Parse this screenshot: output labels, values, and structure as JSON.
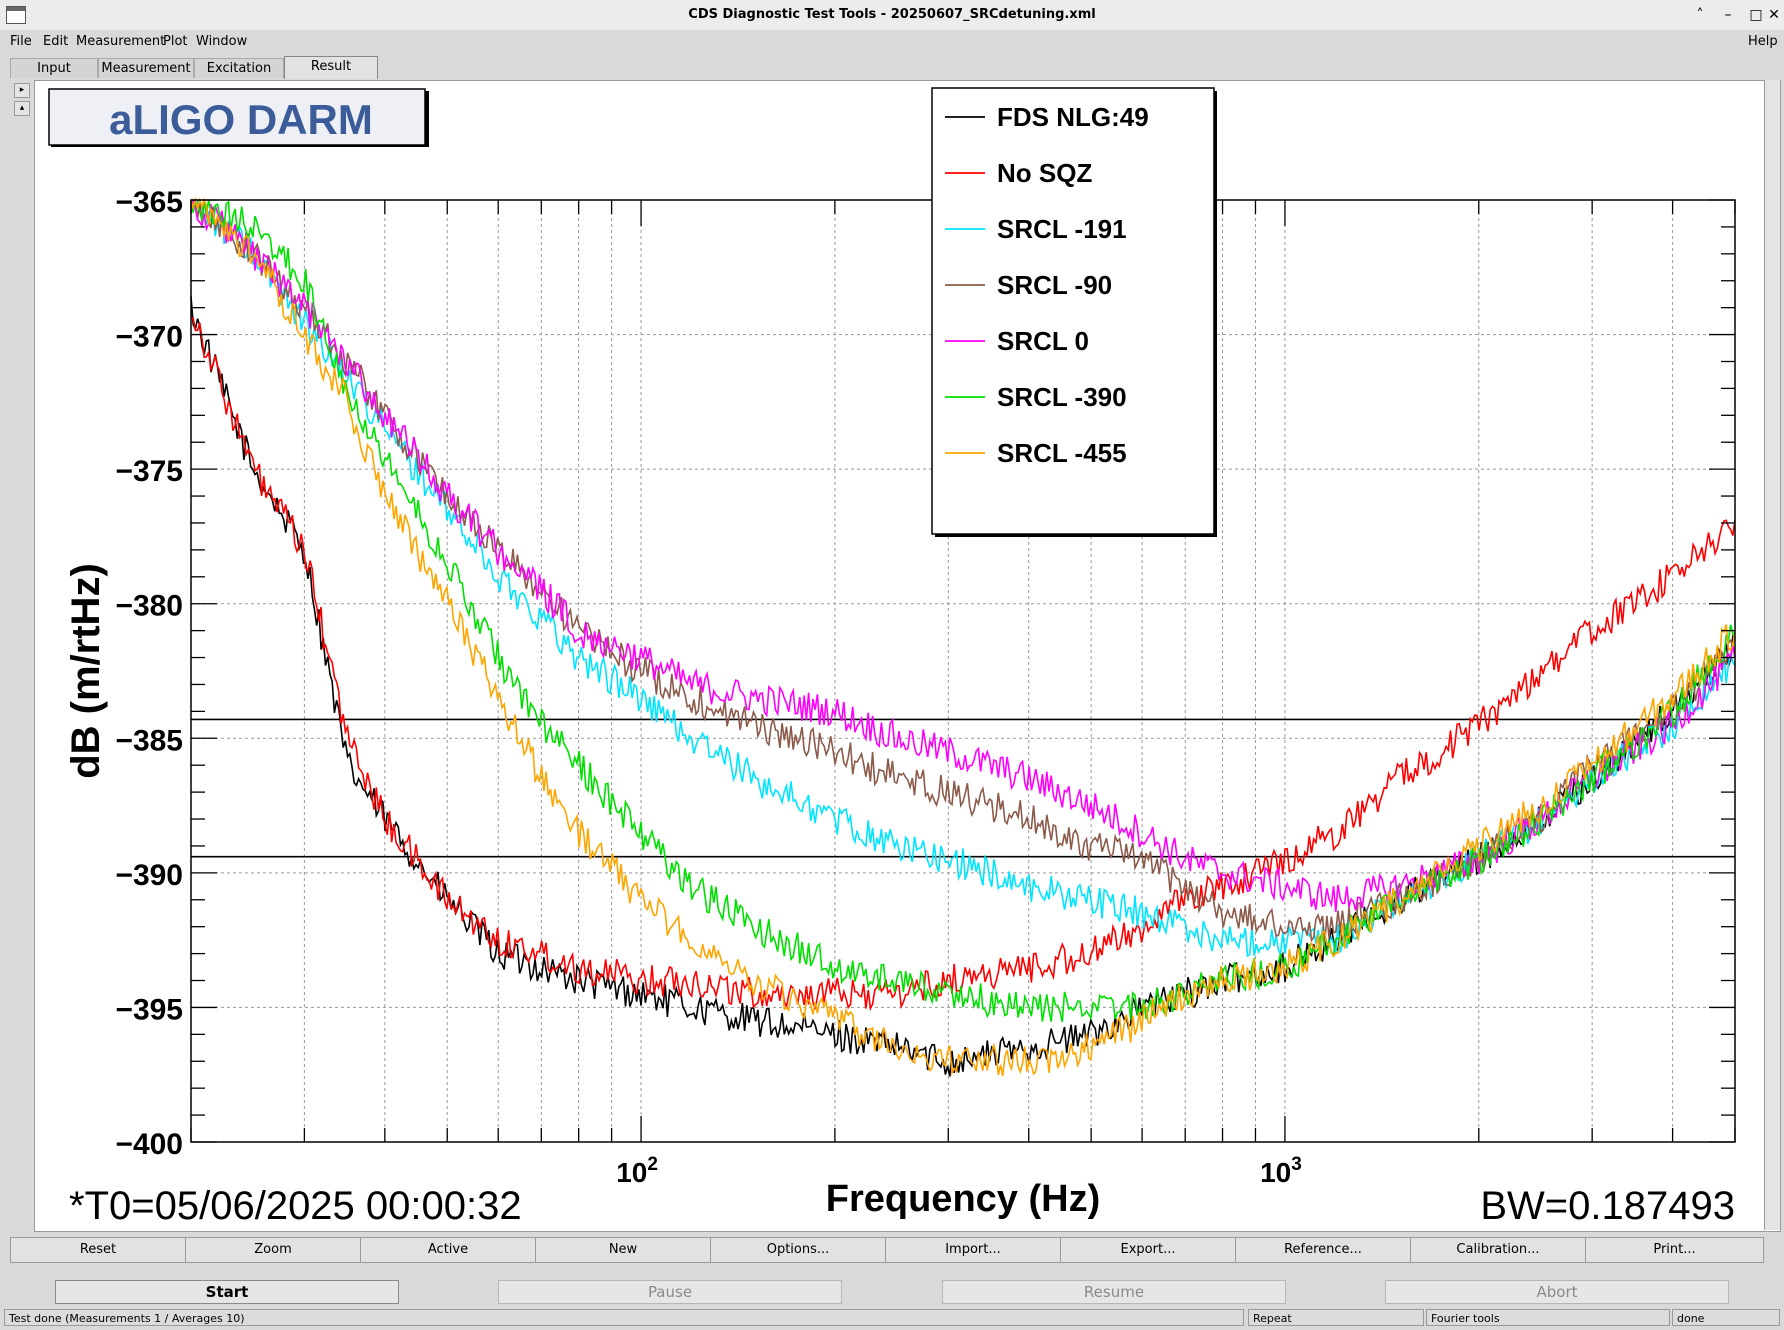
{
  "window": {
    "title": "CDS Diagnostic Test Tools - 20250607_SRCdetuning.xml"
  },
  "menu": {
    "file": "File",
    "edit": "Edit",
    "measurement": "Measurement",
    "plot": "Plot",
    "window": "Window",
    "help": "Help"
  },
  "tabs": [
    "Input",
    "Measurement",
    "Excitation",
    "Result"
  ],
  "plot_buttons": [
    "Reset",
    "Zoom",
    "Active",
    "New",
    "Options...",
    "Import...",
    "Export...",
    "Reference...",
    "Calibration...",
    "Print..."
  ],
  "controls": {
    "start": "Start",
    "pause": "Pause",
    "resume": "Resume",
    "abort": "Abort"
  },
  "status": {
    "message": "Test done (Measurements 1 / Averages 10)",
    "repeat": "Repeat",
    "tool": "Fourier tools",
    "state": "done"
  },
  "chart_data": {
    "type": "line",
    "title": "aLIGO DARM",
    "xlabel": "Frequency (Hz)",
    "ylabel": "dB (m/rtHz)",
    "x_scale": "log",
    "xlim": [
      20,
      5000
    ],
    "ylim": [
      -400,
      -365
    ],
    "y_ticks": [
      -365,
      -370,
      -375,
      -380,
      -385,
      -390,
      -395,
      -400
    ],
    "x_tick_labels": [
      {
        "value": 100,
        "base": "10",
        "exp": "2"
      },
      {
        "value": 1000,
        "base": "10",
        "exp": "3"
      }
    ],
    "reference_lines_y": [
      -384.3,
      -389.4
    ],
    "grid": true,
    "legend_position": "top-center",
    "annotations": {
      "t0": "*T0=05/06/2025 00:00:32",
      "bw": "BW=0.187493"
    },
    "x": [
      20,
      25,
      30,
      35,
      40,
      50,
      60,
      70,
      80,
      100,
      120,
      150,
      200,
      250,
      300,
      400,
      500,
      600,
      700,
      800,
      1000,
      1200,
      1500,
      2000,
      2500,
      3000,
      4000,
      5000
    ],
    "series": [
      {
        "name": "FDS NLG:49",
        "color": "#000000",
        "values": [
          -369,
          -375,
          -378,
          -386,
          -388,
          -391,
          -393,
          -393.5,
          -394,
          -394.5,
          -395,
          -395.5,
          -396,
          -396.5,
          -397,
          -396.5,
          -396,
          -395,
          -394.5,
          -394,
          -393.5,
          -392.5,
          -391,
          -389.5,
          -388,
          -386.5,
          -384,
          -381.5
        ]
      },
      {
        "name": "No SQZ",
        "color": "#ff0000",
        "values": [
          -369,
          -375,
          -378,
          -385,
          -388,
          -391,
          -392.5,
          -393,
          -393.5,
          -394,
          -394,
          -394.5,
          -394.5,
          -394.5,
          -394,
          -393.5,
          -393,
          -392,
          -391,
          -390.5,
          -389.5,
          -388.5,
          -386.5,
          -384.5,
          -382.5,
          -381,
          -379,
          -377
        ]
      },
      {
        "name": "SRCL -191",
        "color": "#00e5ff",
        "values": [
          -365,
          -367,
          -369.5,
          -371.5,
          -373.5,
          -376.5,
          -379,
          -380.5,
          -382,
          -383.5,
          -385,
          -386.5,
          -388,
          -389,
          -389.5,
          -390.5,
          -391,
          -391.5,
          -392,
          -392.5,
          -392.5,
          -392.5,
          -391,
          -389.5,
          -388,
          -386.5,
          -384.5,
          -382
        ]
      },
      {
        "name": "SRCL -90",
        "color": "#8b5a4a",
        "values": [
          -365,
          -367,
          -369,
          -371,
          -373,
          -376,
          -378,
          -379.5,
          -381,
          -382.5,
          -383.5,
          -384.5,
          -385.5,
          -386.5,
          -387,
          -388,
          -389,
          -389.5,
          -390.5,
          -391.5,
          -392,
          -392,
          -391,
          -389.5,
          -388,
          -386,
          -384,
          -381.5
        ]
      },
      {
        "name": "SRCL 0",
        "color": "#ff00ff",
        "values": [
          -365,
          -367,
          -369,
          -371,
          -373,
          -376,
          -378,
          -379.5,
          -381,
          -382,
          -383,
          -383.5,
          -384,
          -385,
          -385.5,
          -386.5,
          -387.5,
          -388.5,
          -389.5,
          -390,
          -390.5,
          -391,
          -390.5,
          -389.5,
          -388,
          -386.5,
          -384.5,
          -382
        ]
      },
      {
        "name": "SRCL -390",
        "color": "#00e000",
        "values": [
          -365,
          -366,
          -368,
          -372,
          -374.5,
          -378.5,
          -382,
          -384.5,
          -386,
          -388.5,
          -390.5,
          -392,
          -393.5,
          -394,
          -394.5,
          -395,
          -395,
          -395,
          -394.5,
          -394,
          -393.5,
          -392.5,
          -391,
          -389.5,
          -388,
          -386.5,
          -384,
          -381
        ]
      },
      {
        "name": "SRCL -455",
        "color": "#ffa500",
        "values": [
          -365,
          -367,
          -370,
          -372.5,
          -376,
          -380,
          -383.5,
          -386.5,
          -388.5,
          -391,
          -392.5,
          -394,
          -395.5,
          -396.5,
          -397,
          -397,
          -396.5,
          -395.5,
          -394.5,
          -394,
          -393.5,
          -392.5,
          -391,
          -389,
          -387.5,
          -386,
          -383.5,
          -381
        ]
      }
    ]
  }
}
